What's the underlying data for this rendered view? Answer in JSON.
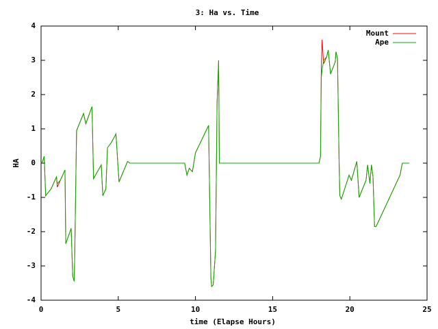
{
  "chart_data": {
    "type": "line",
    "title": "3: Ha vs. Time",
    "x_label": "time (Elapse Hours)",
    "y_label": "HA",
    "x": [
      0,
      0.1,
      0.2,
      0.3,
      0.65,
      1.0,
      1.05,
      1.25,
      1.55,
      1.6,
      1.95,
      2.05,
      2.15,
      2.2,
      2.3,
      2.75,
      2.9,
      3.3,
      3.4,
      3.9,
      4.0,
      4.2,
      4.3,
      4.55,
      4.85,
      5.05,
      5.6,
      5.75,
      9.3,
      9.45,
      9.6,
      9.8,
      10.0,
      10.85,
      11.0,
      11.05,
      11.15,
      11.3,
      11.4,
      11.5,
      11.55,
      18.0,
      18.1,
      18.15,
      18.2,
      18.3,
      18.5,
      18.6,
      18.75,
      19.05,
      19.1,
      19.2,
      19.3,
      19.35,
      19.45,
      19.95,
      20.1,
      20.45,
      20.6,
      21.05,
      21.15,
      21.3,
      21.4,
      21.5,
      21.6,
      21.7,
      23.25,
      23.4,
      23.85
    ],
    "series": [
      {
        "name": "Mount",
        "color": "#ff0000",
        "values": [
          0,
          0.05,
          0.2,
          -0.95,
          -0.75,
          -0.4,
          -0.7,
          -0.5,
          -0.2,
          -2.35,
          -1.9,
          -3.3,
          -3.45,
          -2.1,
          0.95,
          1.45,
          1.15,
          1.65,
          -0.45,
          -0.05,
          -0.95,
          -0.75,
          0.45,
          0.6,
          0.85,
          -0.55,
          0.05,
          0,
          0,
          -0.35,
          -0.15,
          -0.25,
          0.3,
          1.1,
          -3.35,
          -3.6,
          -3.55,
          -2.55,
          1.75,
          3.0,
          0,
          0,
          0.2,
          2.75,
          3.6,
          2.9,
          3.1,
          3.3,
          2.6,
          2.95,
          3.25,
          3.05,
          0.15,
          -0.95,
          -1.05,
          -0.35,
          -0.5,
          0.05,
          -1.0,
          -0.5,
          -0.05,
          -0.6,
          -0.05,
          -0.4,
          -1.85,
          -1.85,
          -0.35,
          0,
          0
        ]
      },
      {
        "name": "Ape",
        "color": "#00b000",
        "values": [
          0,
          0.05,
          0.2,
          -0.95,
          -0.75,
          -0.4,
          -0.6,
          -0.5,
          -0.2,
          -2.35,
          -1.9,
          -3.3,
          -3.45,
          -2.1,
          0.95,
          1.45,
          1.15,
          1.65,
          -0.45,
          -0.05,
          -0.95,
          -0.75,
          0.45,
          0.6,
          0.85,
          -0.55,
          0.05,
          0,
          0,
          -0.35,
          -0.15,
          -0.25,
          0.3,
          1.1,
          -3.35,
          -3.6,
          -3.55,
          -2.55,
          1.75,
          3.0,
          0,
          0,
          0.2,
          2.5,
          2.7,
          3.0,
          3.1,
          3.3,
          2.6,
          2.95,
          3.25,
          3.05,
          0.15,
          -0.95,
          -1.05,
          -0.35,
          -0.5,
          0.05,
          -1.0,
          -0.5,
          -0.05,
          -0.6,
          -0.05,
          -0.4,
          -1.85,
          -1.85,
          -0.35,
          0,
          0
        ]
      }
    ],
    "xlim": [
      0,
      25
    ],
    "xticks": [
      0,
      5,
      10,
      15,
      20,
      25
    ],
    "ylim": [
      -4,
      4
    ],
    "yticks": [
      -4,
      -3,
      -2,
      -1,
      0,
      1,
      2,
      3,
      4
    ],
    "grid": false,
    "legend": "top-right"
  }
}
